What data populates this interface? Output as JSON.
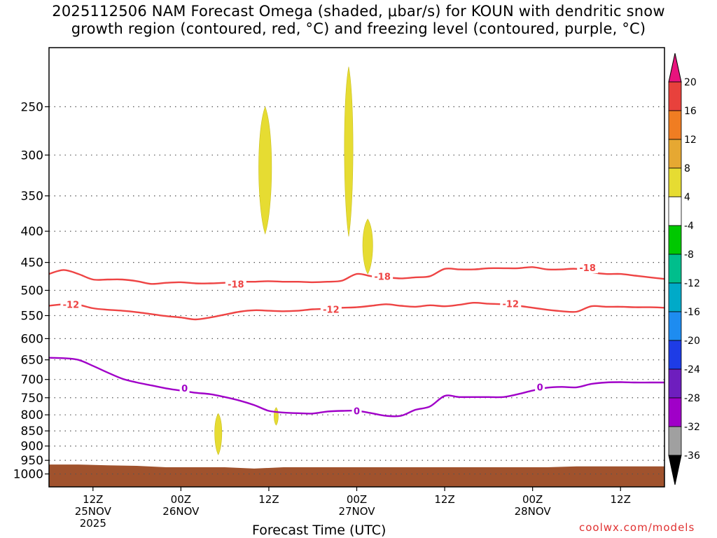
{
  "title": "2025112506 NAM Forecast Omega (shaded, μbar/s) for KOUN with dendritic snow\ngrowth region (contoured, red, °C) and freezing level (contoured, purple, °C)",
  "credit": "coolwx.com/models",
  "chart_data": {
    "type": "time-height cross section",
    "xlabel": "Forecast Time (UTC)",
    "ylabel": "",
    "x_unit": "hours since 2025-11-25 00Z",
    "xlim": [
      6,
      90
    ],
    "ylim": [
      1050,
      200
    ],
    "y_scale": "log-pressure",
    "grid": true,
    "y_ticks": [
      250,
      300,
      350,
      400,
      450,
      500,
      550,
      600,
      650,
      700,
      750,
      800,
      850,
      900,
      950,
      1000
    ],
    "x_ticks": [
      {
        "x": 12,
        "lines": [
          "12Z",
          "25NOV",
          "2025"
        ]
      },
      {
        "x": 24,
        "lines": [
          "00Z",
          "26NOV"
        ]
      },
      {
        "x": 36,
        "lines": [
          "12Z"
        ]
      },
      {
        "x": 48,
        "lines": [
          "00Z",
          "27NOV"
        ]
      },
      {
        "x": 60,
        "lines": [
          "12Z"
        ]
      },
      {
        "x": 72,
        "lines": [
          "00Z",
          "28NOV"
        ]
      },
      {
        "x": 84,
        "lines": [
          "12Z"
        ]
      }
    ],
    "colorbar": {
      "labels": [
        "20",
        "16",
        "12",
        "8",
        "4",
        "-4",
        "-8",
        "-12",
        "-16",
        "-20",
        "-24",
        "-28",
        "-32",
        "-36"
      ],
      "colors": [
        "#e8137d",
        "#e8413c",
        "#f07d22",
        "#e6a832",
        "#e6dc32",
        "#ffffff",
        "#00c800",
        "#00be8c",
        "#00aac8",
        "#1e8cf0",
        "#1e3ce6",
        "#6e1ebe",
        "#a000c8",
        "#a0a0a0",
        "#000000"
      ]
    },
    "series": [
      {
        "name": "-18",
        "color": "#ee4444",
        "x": [
          6,
          8,
          10,
          12,
          14,
          16,
          18,
          20,
          22,
          24,
          26,
          28,
          30,
          32,
          34,
          36,
          38,
          40,
          42,
          44,
          46,
          48,
          50,
          52,
          54,
          56,
          58,
          60,
          62,
          64,
          66,
          68,
          70,
          72,
          74,
          76,
          78,
          80,
          82,
          84,
          86,
          88,
          90
        ],
        "y": [
          470,
          463,
          470,
          480,
          480,
          480,
          483,
          488,
          486,
          485,
          487,
          487,
          486,
          484,
          484,
          483,
          484,
          484,
          485,
          484,
          482,
          470,
          474,
          476,
          478,
          476,
          474,
          461,
          462,
          462,
          460,
          460,
          460,
          458,
          462,
          462,
          461,
          467,
          470,
          470,
          473,
          476,
          479
        ]
      },
      {
        "name": "-12",
        "color": "#ee4444",
        "x": [
          6,
          8,
          10,
          12,
          14,
          16,
          18,
          20,
          22,
          24,
          26,
          28,
          30,
          32,
          34,
          36,
          38,
          40,
          42,
          44,
          46,
          48,
          50,
          52,
          54,
          56,
          58,
          60,
          62,
          64,
          66,
          68,
          70,
          72,
          74,
          76,
          78,
          80,
          82,
          84,
          86,
          88,
          90
        ],
        "y": [
          530,
          527,
          528,
          535,
          538,
          540,
          543,
          547,
          551,
          554,
          558,
          554,
          548,
          542,
          539,
          540,
          541,
          540,
          537,
          536,
          534,
          533,
          530,
          527,
          530,
          532,
          529,
          531,
          528,
          524,
          526,
          527,
          530,
          534,
          538,
          541,
          542,
          531,
          532,
          532,
          533,
          533,
          534
        ]
      },
      {
        "name": "0",
        "color": "#a000c8",
        "x": [
          6,
          8,
          10,
          12,
          14,
          16,
          18,
          20,
          22,
          24,
          26,
          28,
          30,
          32,
          34,
          36,
          38,
          40,
          42,
          44,
          46,
          48,
          50,
          52,
          54,
          56,
          58,
          60,
          62,
          64,
          66,
          68,
          70,
          72,
          74,
          76,
          78,
          80,
          82,
          84,
          86,
          88,
          90
        ],
        "y": [
          645,
          646,
          650,
          665,
          682,
          698,
          708,
          716,
          724,
          730,
          736,
          740,
          748,
          758,
          771,
          788,
          793,
          795,
          796,
          790,
          788,
          788,
          795,
          803,
          803,
          785,
          775,
          745,
          748,
          748,
          748,
          748,
          740,
          730,
          722,
          720,
          721,
          712,
          708,
          707,
          708,
          708,
          708
        ]
      }
    ],
    "shaded_areas": [
      {
        "category": "4 to 8",
        "color": "#e6dc32",
        "t": [
          28.6,
          29.6
        ],
        "p": [
          796,
          930
        ]
      },
      {
        "category": "4 to 8",
        "color": "#e6dc32",
        "t": [
          34.6,
          36.4
        ],
        "p": [
          250,
          404
        ]
      },
      {
        "category": "4 to 8",
        "color": "#e6dc32",
        "t": [
          36.7,
          37.3
        ],
        "p": [
          778,
          832
        ]
      },
      {
        "category": "4 to 8",
        "color": "#e6dc32",
        "t": [
          46.3,
          47.5
        ],
        "p": [
          215,
          408
        ]
      },
      {
        "category": "4 to 8",
        "color": "#e6dc32",
        "t": [
          48.8,
          50.2
        ],
        "p": [
          382,
          470
        ]
      }
    ],
    "ground": {
      "color": "#a0522d",
      "p": [
        965,
        965,
        968,
        970,
        975,
        975,
        975,
        980,
        975,
        975,
        975,
        975,
        975,
        975,
        975,
        975,
        975,
        975,
        972,
        972,
        972,
        972
      ]
    },
    "contour_labels": [
      {
        "text": "-18",
        "x": 31.5,
        "y": 488
      },
      {
        "text": "-18",
        "x": 51.5,
        "y": 474
      },
      {
        "text": "-18",
        "x": 79.5,
        "y": 459
      },
      {
        "text": "-12",
        "x": 9,
        "y": 527
      },
      {
        "text": "-12",
        "x": 44.5,
        "y": 537
      },
      {
        "text": "-12",
        "x": 69,
        "y": 526
      },
      {
        "text": "0",
        "x": 24.5,
        "y": 723
      },
      {
        "text": "0",
        "x": 48,
        "y": 788
      },
      {
        "text": "0",
        "x": 73,
        "y": 720
      }
    ]
  }
}
